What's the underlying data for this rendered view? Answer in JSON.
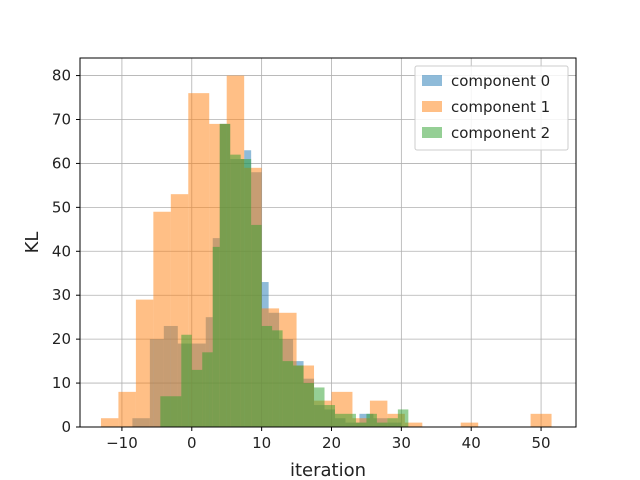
{
  "chart_data": {
    "type": "bar",
    "subtype": "overlapping-histogram",
    "title": "",
    "xlabel": "iteration",
    "ylabel": "KL",
    "xlim": [
      -16,
      55
    ],
    "ylim": [
      0,
      84
    ],
    "xticks": [
      -10,
      0,
      10,
      20,
      30,
      40,
      50
    ],
    "yticks": [
      0,
      10,
      20,
      30,
      40,
      50,
      60,
      70,
      80
    ],
    "grid": true,
    "legend_position": "top-right",
    "series": [
      {
        "name": "component 0",
        "color": "#1f77b4",
        "bins": [
          {
            "x0": -8.5,
            "x1": -6.0,
            "count": 2
          },
          {
            "x0": -6.0,
            "x1": -4.0,
            "count": 20
          },
          {
            "x0": -4.0,
            "x1": -2.0,
            "count": 23
          },
          {
            "x0": -2.0,
            "x1": 0.0,
            "count": 19
          },
          {
            "x0": 0.0,
            "x1": 2.0,
            "count": 19
          },
          {
            "x0": 2.0,
            "x1": 3.0,
            "count": 25
          },
          {
            "x0": 3.0,
            "x1": 4.0,
            "count": 43
          },
          {
            "x0": 4.0,
            "x1": 5.5,
            "count": 69
          },
          {
            "x0": 5.5,
            "x1": 7.5,
            "count": 61
          },
          {
            "x0": 7.5,
            "x1": 8.5,
            "count": 63
          },
          {
            "x0": 8.5,
            "x1": 10.0,
            "count": 58
          },
          {
            "x0": 10.0,
            "x1": 11.0,
            "count": 33
          },
          {
            "x0": 11.0,
            "x1": 12.5,
            "count": 26
          },
          {
            "x0": 12.5,
            "x1": 14.5,
            "count": 20
          },
          {
            "x0": 14.5,
            "x1": 16.0,
            "count": 15
          },
          {
            "x0": 16.0,
            "x1": 17.5,
            "count": 11
          },
          {
            "x0": 17.5,
            "x1": 19.0,
            "count": 5
          },
          {
            "x0": 19.0,
            "x1": 20.5,
            "count": 4
          },
          {
            "x0": 20.5,
            "x1": 22.0,
            "count": 2
          },
          {
            "x0": 22.0,
            "x1": 24.0,
            "count": 1
          },
          {
            "x0": 24.0,
            "x1": 26.0,
            "count": 3
          },
          {
            "x0": 26.0,
            "x1": 28.0,
            "count": 2
          },
          {
            "x0": 28.0,
            "x1": 30.0,
            "count": 1
          }
        ]
      },
      {
        "name": "component 1",
        "color": "#ff7f0e",
        "bins": [
          {
            "x0": -13.0,
            "x1": -10.5,
            "count": 2
          },
          {
            "x0": -10.5,
            "x1": -8.0,
            "count": 8
          },
          {
            "x0": -8.0,
            "x1": -5.5,
            "count": 29
          },
          {
            "x0": -5.5,
            "x1": -3.0,
            "count": 49
          },
          {
            "x0": -3.0,
            "x1": -0.5,
            "count": 53
          },
          {
            "x0": -0.5,
            "x1": 2.5,
            "count": 76
          },
          {
            "x0": 2.5,
            "x1": 5.0,
            "count": 69
          },
          {
            "x0": 5.0,
            "x1": 7.5,
            "count": 80
          },
          {
            "x0": 7.5,
            "x1": 10.0,
            "count": 59
          },
          {
            "x0": 10.0,
            "x1": 12.5,
            "count": 27
          },
          {
            "x0": 12.5,
            "x1": 15.0,
            "count": 26
          },
          {
            "x0": 15.0,
            "x1": 17.5,
            "count": 14
          },
          {
            "x0": 17.5,
            "x1": 20.0,
            "count": 6
          },
          {
            "x0": 20.0,
            "x1": 23.0,
            "count": 8
          },
          {
            "x0": 23.0,
            "x1": 25.5,
            "count": 2
          },
          {
            "x0": 25.5,
            "x1": 28.0,
            "count": 6
          },
          {
            "x0": 28.0,
            "x1": 30.5,
            "count": 3
          },
          {
            "x0": 30.5,
            "x1": 33.0,
            "count": 1
          },
          {
            "x0": 38.5,
            "x1": 41.0,
            "count": 1
          },
          {
            "x0": 48.5,
            "x1": 51.5,
            "count": 3
          }
        ]
      },
      {
        "name": "component 2",
        "color": "#2ca02c",
        "bins": [
          {
            "x0": -4.5,
            "x1": -1.5,
            "count": 7
          },
          {
            "x0": -1.5,
            "x1": 0.0,
            "count": 21
          },
          {
            "x0": 0.0,
            "x1": 1.5,
            "count": 13
          },
          {
            "x0": 1.5,
            "x1": 3.0,
            "count": 17
          },
          {
            "x0": 3.0,
            "x1": 4.0,
            "count": 41
          },
          {
            "x0": 4.0,
            "x1": 5.5,
            "count": 69
          },
          {
            "x0": 5.5,
            "x1": 7.0,
            "count": 62
          },
          {
            "x0": 7.0,
            "x1": 8.5,
            "count": 61
          },
          {
            "x0": 8.5,
            "x1": 10.0,
            "count": 46
          },
          {
            "x0": 10.0,
            "x1": 11.5,
            "count": 23
          },
          {
            "x0": 11.5,
            "x1": 13.0,
            "count": 22
          },
          {
            "x0": 13.0,
            "x1": 14.5,
            "count": 15
          },
          {
            "x0": 14.5,
            "x1": 16.0,
            "count": 14
          },
          {
            "x0": 16.0,
            "x1": 17.5,
            "count": 10
          },
          {
            "x0": 17.5,
            "x1": 19.0,
            "count": 9
          },
          {
            "x0": 19.0,
            "x1": 20.5,
            "count": 5
          },
          {
            "x0": 20.5,
            "x1": 22.0,
            "count": 3
          },
          {
            "x0": 22.0,
            "x1": 23.5,
            "count": 3
          },
          {
            "x0": 23.5,
            "x1": 25.0,
            "count": 1
          },
          {
            "x0": 25.0,
            "x1": 26.5,
            "count": 3
          },
          {
            "x0": 26.5,
            "x1": 28.0,
            "count": 1
          },
          {
            "x0": 28.0,
            "x1": 29.5,
            "count": 2
          },
          {
            "x0": 29.5,
            "x1": 31.0,
            "count": 4
          }
        ]
      }
    ]
  }
}
